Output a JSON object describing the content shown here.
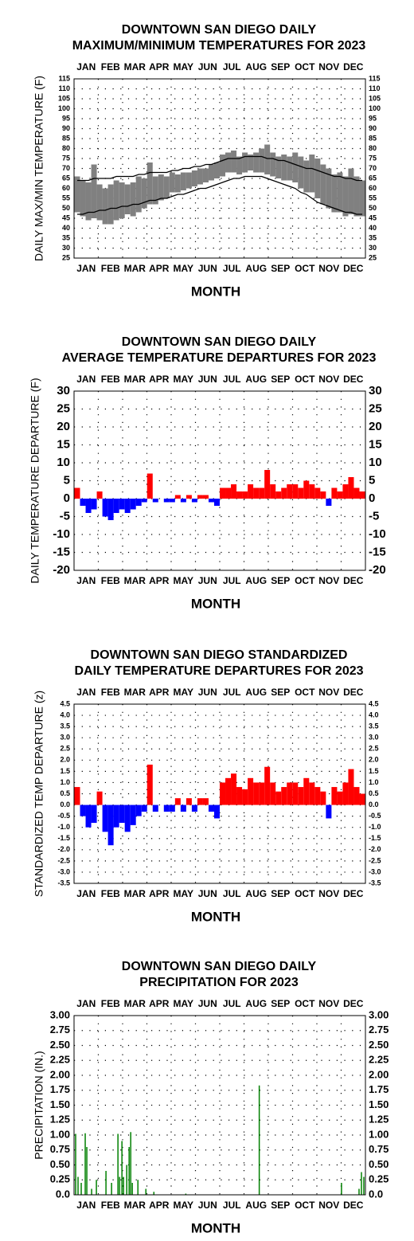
{
  "chart_data": [
    {
      "type": "range",
      "title": [
        "DOWNTOWN SAN DIEGO DAILY",
        "MAXIMUM/MINIMUM TEMPERATURES FOR 2023"
      ],
      "y_label": "DAILY MAX/MIN TEMPERATURE (F)",
      "x_label": "MONTH",
      "categories": [
        "JAN",
        "FEB",
        "MAR",
        "APR",
        "MAY",
        "JUN",
        "JUL",
        "AUG",
        "SEP",
        "OCT",
        "NOV",
        "DEC"
      ],
      "xlim": [
        0,
        365
      ],
      "x": [
        4,
        11,
        18,
        25,
        32,
        39,
        46,
        53,
        60,
        67,
        74,
        81,
        88,
        95,
        102,
        109,
        116,
        123,
        130,
        137,
        144,
        151,
        158,
        165,
        172,
        179,
        186,
        193,
        200,
        207,
        214,
        221,
        228,
        235,
        242,
        249,
        256,
        263,
        270,
        277,
        284,
        291,
        298,
        305,
        312,
        319,
        326,
        333,
        340,
        347,
        354,
        361
      ],
      "high": [
        66,
        64,
        63,
        72,
        62,
        60,
        62,
        64,
        63,
        62,
        63,
        66,
        65,
        73,
        66,
        67,
        66,
        68,
        67,
        68,
        68,
        69,
        70,
        70,
        72,
        73,
        77,
        78,
        79,
        76,
        78,
        77,
        78,
        80,
        82,
        78,
        76,
        77,
        76,
        78,
        76,
        74,
        77,
        75,
        72,
        70,
        67,
        68,
        66,
        70,
        66,
        64
      ],
      "low": [
        48,
        46,
        44,
        45,
        44,
        42,
        42,
        44,
        45,
        47,
        46,
        48,
        50,
        52,
        52,
        54,
        55,
        58,
        58,
        59,
        60,
        61,
        62,
        63,
        64,
        65,
        66,
        68,
        68,
        67,
        68,
        69,
        68,
        68,
        67,
        66,
        65,
        64,
        64,
        63,
        60,
        58,
        58,
        55,
        52,
        50,
        48,
        48,
        46,
        47,
        46,
        46
      ],
      "normal_high": [
        64,
        64,
        64,
        65,
        65,
        65,
        65,
        66,
        66,
        66,
        66,
        67,
        67,
        68,
        68,
        68,
        68,
        69,
        69,
        70,
        70,
        71,
        71,
        72,
        72,
        73,
        74,
        75,
        75,
        75,
        76,
        76,
        76,
        76,
        75,
        75,
        74,
        74,
        73,
        72,
        71,
        70,
        70,
        69,
        68,
        67,
        66,
        66,
        65,
        65,
        64,
        64
      ],
      "normal_low": [
        47,
        47,
        48,
        48,
        49,
        49,
        50,
        50,
        51,
        51,
        52,
        52,
        53,
        54,
        54,
        55,
        55,
        56,
        57,
        57,
        58,
        59,
        60,
        60,
        61,
        62,
        63,
        64,
        65,
        65,
        66,
        66,
        66,
        66,
        65,
        64,
        63,
        62,
        61,
        60,
        58,
        57,
        55,
        53,
        52,
        51,
        50,
        49,
        48,
        48,
        47,
        47
      ],
      "range_color": "#808080",
      "normal_color": "#000000",
      "ylim": [
        25,
        115
      ],
      "yticks": [
        25,
        30,
        35,
        40,
        45,
        50,
        55,
        60,
        65,
        70,
        75,
        80,
        85,
        90,
        95,
        100,
        105,
        110,
        115
      ],
      "grid": true
    },
    {
      "type": "bar",
      "title": [
        "DOWNTOWN SAN DIEGO DAILY",
        "AVERAGE TEMPERATURE DEPARTURES FOR 2023"
      ],
      "y_label": "DAILY TEMPERATURE DEPARTURE (F)",
      "x_label": "MONTH",
      "categories": [
        "JAN",
        "FEB",
        "MAR",
        "APR",
        "MAY",
        "JUN",
        "JUL",
        "AUG",
        "SEP",
        "OCT",
        "NOV",
        "DEC"
      ],
      "xlim": [
        0,
        365
      ],
      "x": [
        4,
        11,
        18,
        25,
        32,
        39,
        46,
        53,
        60,
        67,
        74,
        81,
        88,
        95,
        102,
        109,
        116,
        123,
        130,
        137,
        144,
        151,
        158,
        165,
        172,
        179,
        186,
        193,
        200,
        207,
        214,
        221,
        228,
        235,
        242,
        249,
        256,
        263,
        270,
        277,
        284,
        291,
        298,
        305,
        312,
        319,
        326,
        333,
        340,
        347,
        354,
        361
      ],
      "values": [
        3,
        -2,
        -4,
        -3,
        2,
        -5,
        -6,
        -4,
        -3,
        -4,
        -3,
        -2,
        -1,
        7,
        -1,
        0,
        -1,
        -1,
        1,
        -1,
        1,
        -1,
        1,
        1,
        -1,
        -2,
        3,
        3,
        4,
        2,
        2,
        4,
        3,
        3,
        8,
        4,
        2,
        3,
        4,
        4,
        3,
        5,
        4,
        3,
        2,
        -2,
        3,
        2,
        4,
        6,
        3,
        2
      ],
      "positive_color": "#ff0000",
      "negative_color": "#0000ff",
      "ylim": [
        -20,
        30
      ],
      "yticks": [
        -20,
        -15,
        -10,
        -5,
        0,
        5,
        10,
        15,
        20,
        25,
        30
      ],
      "grid": true
    },
    {
      "type": "bar",
      "title": [
        "DOWNTOWN SAN DIEGO STANDARDIZED",
        "DAILY TEMPERATURE DEPARTURES FOR 2023"
      ],
      "y_label": "STANDARDIZED TEMP DEPARTURE (z)",
      "x_label": "MONTH",
      "categories": [
        "JAN",
        "FEB",
        "MAR",
        "APR",
        "MAY",
        "JUN",
        "JUL",
        "AUG",
        "SEP",
        "OCT",
        "NOV",
        "DEC"
      ],
      "xlim": [
        0,
        365
      ],
      "x": [
        4,
        11,
        18,
        25,
        32,
        39,
        46,
        53,
        60,
        67,
        74,
        81,
        88,
        95,
        102,
        109,
        116,
        123,
        130,
        137,
        144,
        151,
        158,
        165,
        172,
        179,
        186,
        193,
        200,
        207,
        214,
        221,
        228,
        235,
        242,
        249,
        256,
        263,
        270,
        277,
        284,
        291,
        298,
        305,
        312,
        319,
        326,
        333,
        340,
        347,
        354,
        361
      ],
      "values": [
        0.8,
        -0.5,
        -1.0,
        -0.8,
        0.6,
        -1.2,
        -1.8,
        -1.0,
        -0.8,
        -1.2,
        -0.9,
        -0.5,
        -0.3,
        1.8,
        -0.3,
        0,
        -0.3,
        -0.3,
        0.3,
        -0.3,
        0.3,
        -0.3,
        0.3,
        0.3,
        -0.3,
        -0.6,
        1.0,
        1.2,
        1.4,
        0.8,
        0.7,
        1.2,
        1.0,
        1.0,
        1.7,
        1.0,
        0.6,
        0.8,
        1.0,
        1.0,
        0.8,
        1.2,
        1.0,
        0.8,
        0.6,
        -0.6,
        0.8,
        0.6,
        1.0,
        1.6,
        0.8,
        0.5
      ],
      "positive_color": "#ff0000",
      "negative_color": "#0000ff",
      "ylim": [
        -3.5,
        4.5
      ],
      "yticks": [
        -3.5,
        {
          "value": -3,
          "label": "-3.0"
        },
        -2.5,
        {
          "value": -2,
          "label": "-2.0"
        },
        -1.5,
        {
          "value": -1,
          "label": "-1.0"
        },
        -0.5,
        {
          "value": 0,
          "label": "0.0"
        },
        0.5,
        {
          "value": 1,
          "label": "1.0"
        },
        1.5,
        {
          "value": 2,
          "label": "2.0"
        },
        2.5,
        {
          "value": 3,
          "label": "3.0"
        },
        3.5,
        {
          "value": 4,
          "label": "4.0"
        },
        4.5
      ],
      "grid": true
    },
    {
      "type": "bar",
      "title": [
        "DOWNTOWN SAN DIEGO DAILY",
        "PRECIPITATION FOR 2023"
      ],
      "y_label": "PRECIPITATION (IN.)",
      "x_label": "MONTH",
      "categories": [
        "JAN",
        "FEB",
        "MAR",
        "APR",
        "MAY",
        "JUN",
        "JUL",
        "AUG",
        "SEP",
        "OCT",
        "NOV",
        "DEC"
      ],
      "xlim": [
        0,
        365
      ],
      "x": [
        2,
        5,
        9,
        14,
        16,
        22,
        28,
        40,
        47,
        55,
        57,
        60,
        62,
        66,
        69,
        71,
        73,
        80,
        90,
        100,
        140,
        232,
        335,
        357,
        360,
        363
      ],
      "values": [
        1.02,
        0.3,
        0.2,
        1.03,
        0.8,
        0.1,
        0.25,
        0.4,
        0.2,
        1.02,
        0.3,
        0.9,
        0.3,
        0.5,
        0.8,
        1.05,
        0.2,
        0.25,
        0.1,
        0.05,
        0.02,
        1.83,
        0.2,
        0.1,
        0.38,
        0.3
      ],
      "color": "#008000",
      "ylim": [
        0,
        3
      ],
      "yticks": [
        {
          "value": 0,
          "label": "0.0"
        },
        {
          "value": 0.25,
          "label": "0.25"
        },
        {
          "value": 0.5,
          "label": "0.50"
        },
        {
          "value": 0.75,
          "label": "0.75"
        },
        {
          "value": 1,
          "label": "1.00"
        },
        {
          "value": 1.25,
          "label": "1.25"
        },
        {
          "value": 1.5,
          "label": "1.50"
        },
        {
          "value": 1.75,
          "label": "1.75"
        },
        {
          "value": 2,
          "label": "2.00"
        },
        {
          "value": 2.25,
          "label": "2.25"
        },
        {
          "value": 2.5,
          "label": "2.50"
        },
        {
          "value": 2.75,
          "label": "2.75"
        },
        {
          "value": 3,
          "label": "3.00"
        }
      ],
      "grid": true
    }
  ]
}
